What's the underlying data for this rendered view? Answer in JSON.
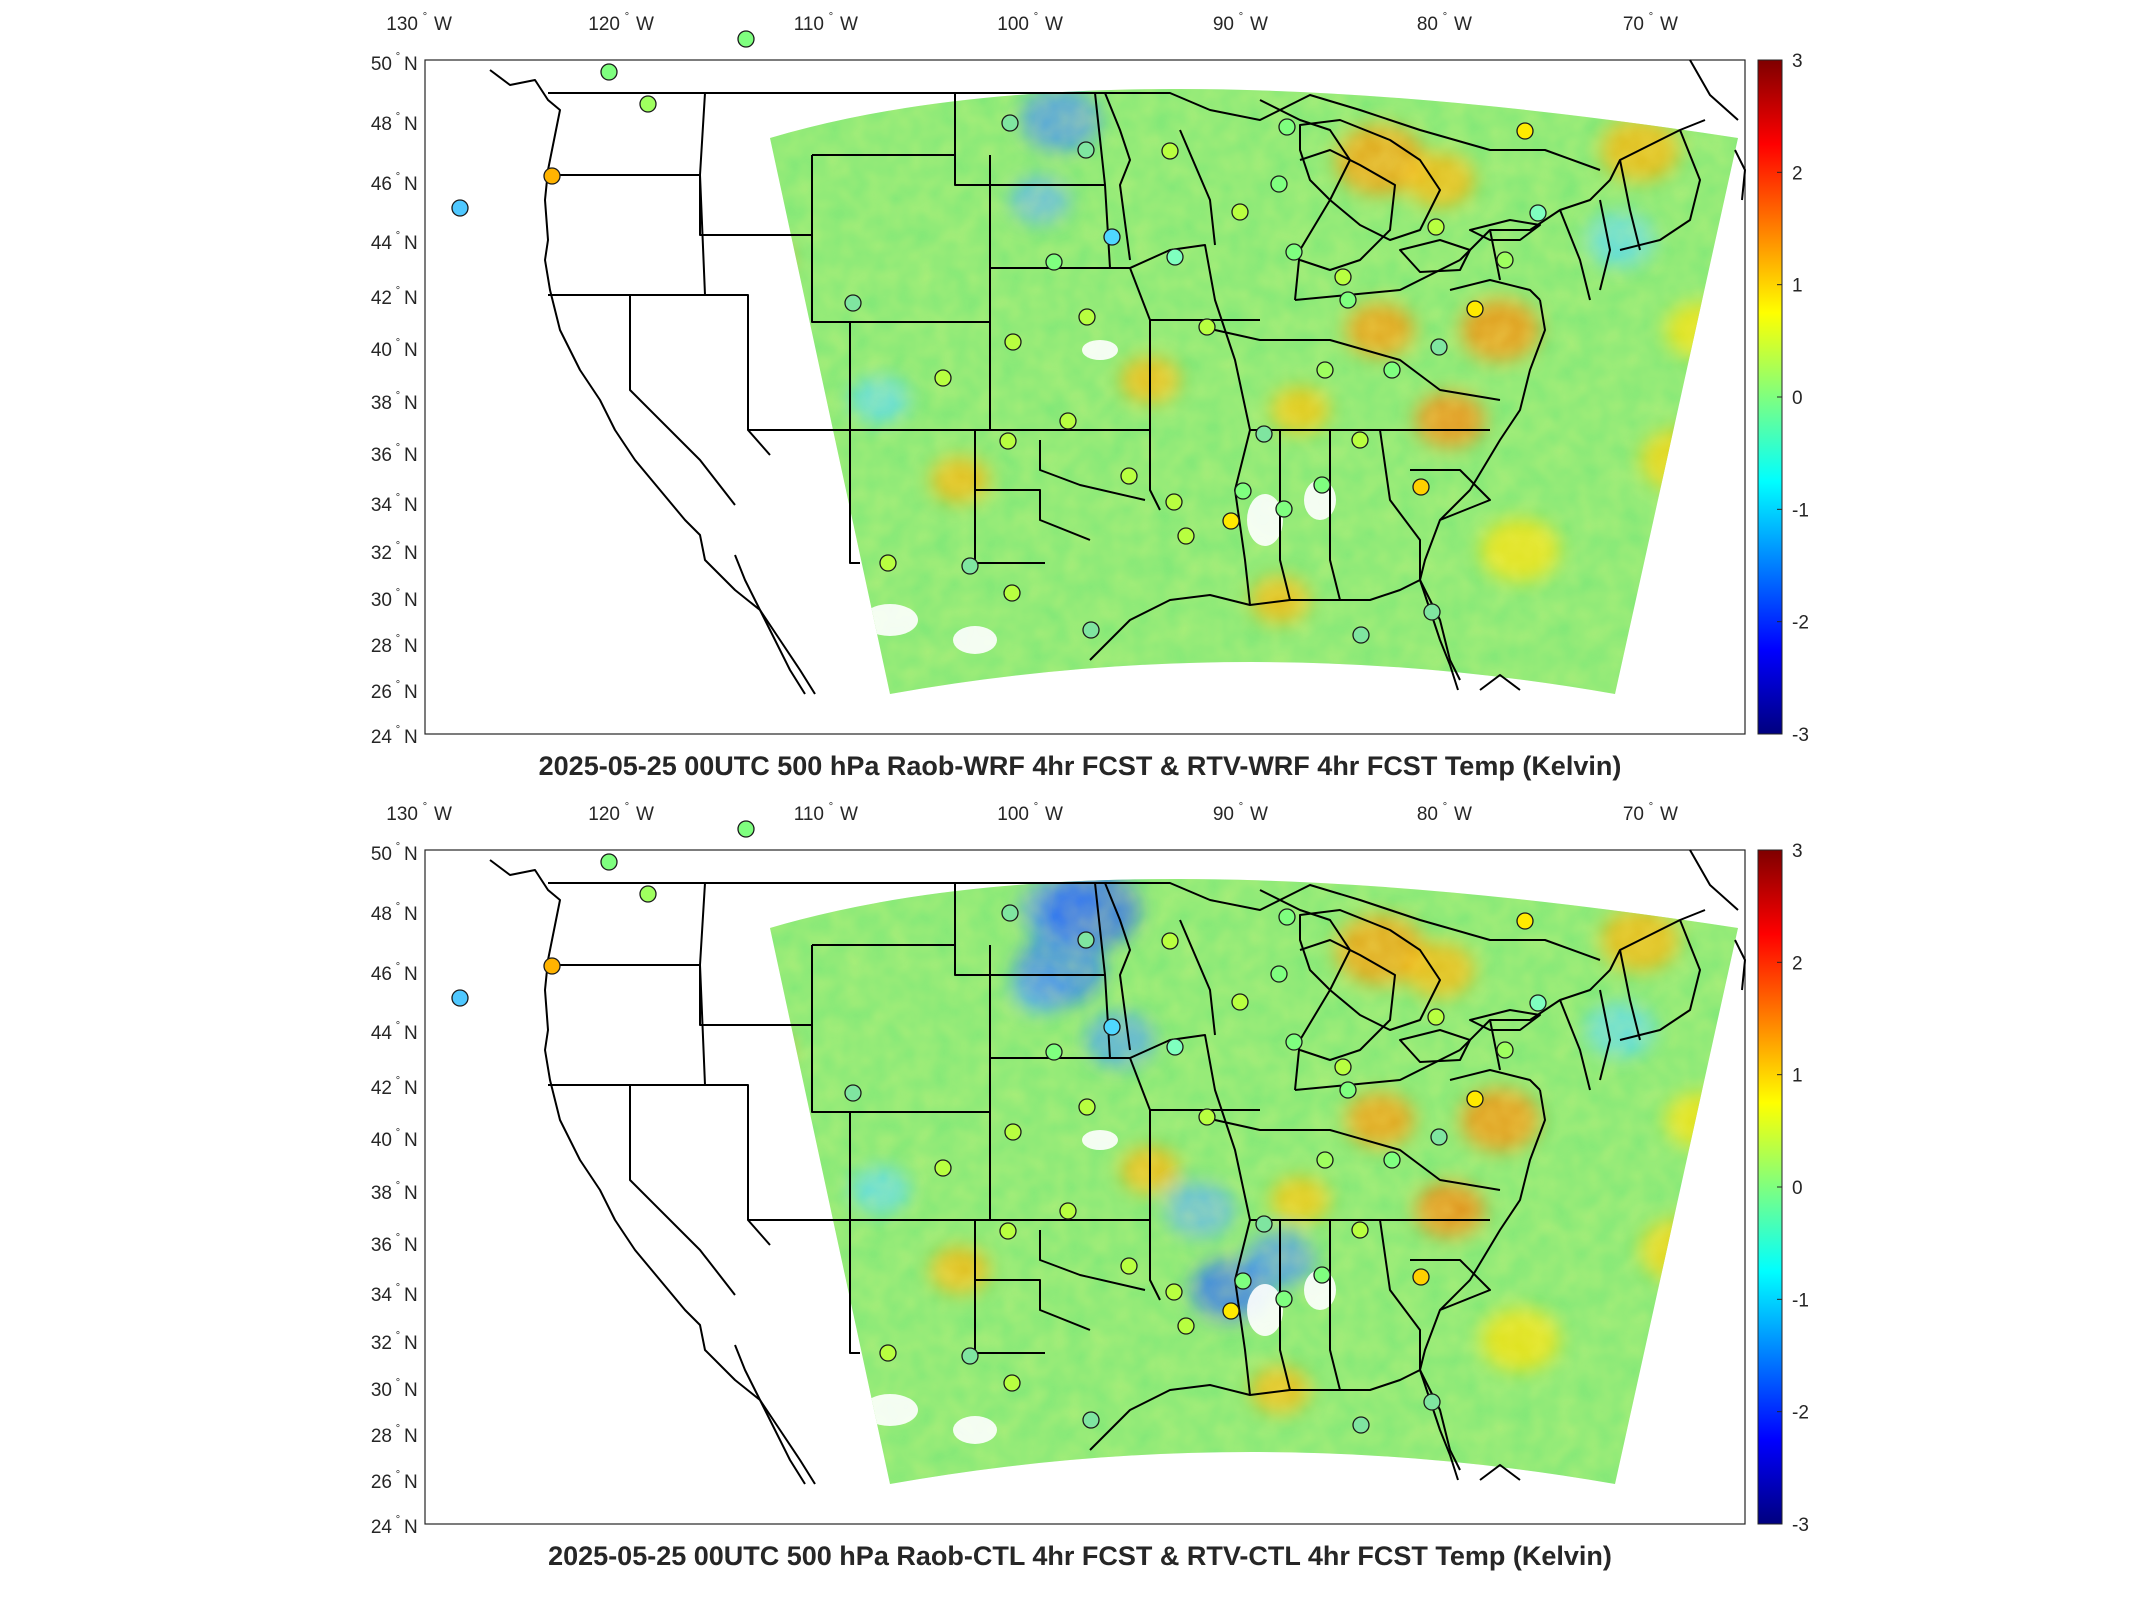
{
  "figure": {
    "panels": [
      {
        "title": "2025-05-25 00UTC 500 hPa Raob-WRF 4hr FCST & RTV-WRF 4hr FCST Temp (Kelvin)",
        "variant": "wrf"
      },
      {
        "title": "2025-05-25 00UTC 500 hPa Raob-CTL 4hr FCST & RTV-CTL 4hr FCST Temp (Kelvin)",
        "variant": "ctl"
      }
    ],
    "lon_ticks": [
      {
        "deg": "130",
        "hemi": "W"
      },
      {
        "deg": "120",
        "hemi": "W"
      },
      {
        "deg": "110",
        "hemi": "W"
      },
      {
        "deg": "100",
        "hemi": "W"
      },
      {
        "deg": "90",
        "hemi": "W"
      },
      {
        "deg": "80",
        "hemi": "W"
      },
      {
        "deg": "70",
        "hemi": "W"
      }
    ],
    "lat_ticks": [
      {
        "deg": "50",
        "hemi": "N"
      },
      {
        "deg": "48",
        "hemi": "N"
      },
      {
        "deg": "46",
        "hemi": "N"
      },
      {
        "deg": "44",
        "hemi": "N"
      },
      {
        "deg": "42",
        "hemi": "N"
      },
      {
        "deg": "40",
        "hemi": "N"
      },
      {
        "deg": "38",
        "hemi": "N"
      },
      {
        "deg": "36",
        "hemi": "N"
      },
      {
        "deg": "34",
        "hemi": "N"
      },
      {
        "deg": "32",
        "hemi": "N"
      },
      {
        "deg": "30",
        "hemi": "N"
      },
      {
        "deg": "28",
        "hemi": "N"
      },
      {
        "deg": "26",
        "hemi": "N"
      },
      {
        "deg": "24",
        "hemi": "N"
      }
    ],
    "colorbar": {
      "min": -3,
      "max": 3,
      "tick_labels": [
        "3",
        "2",
        "1",
        "0",
        "-1",
        "-2",
        "-3"
      ],
      "colormap": "jet",
      "colors": [
        "#00007f",
        "#0000ff",
        "#007fff",
        "#00ffff",
        "#7fff7f",
        "#ffff00",
        "#ff7f00",
        "#ff0000",
        "#7f0000"
      ]
    },
    "colors": {
      "field_base": "#7fe878",
      "station_edge": "#1a1a1a",
      "boundary": "#000000"
    }
  }
}
